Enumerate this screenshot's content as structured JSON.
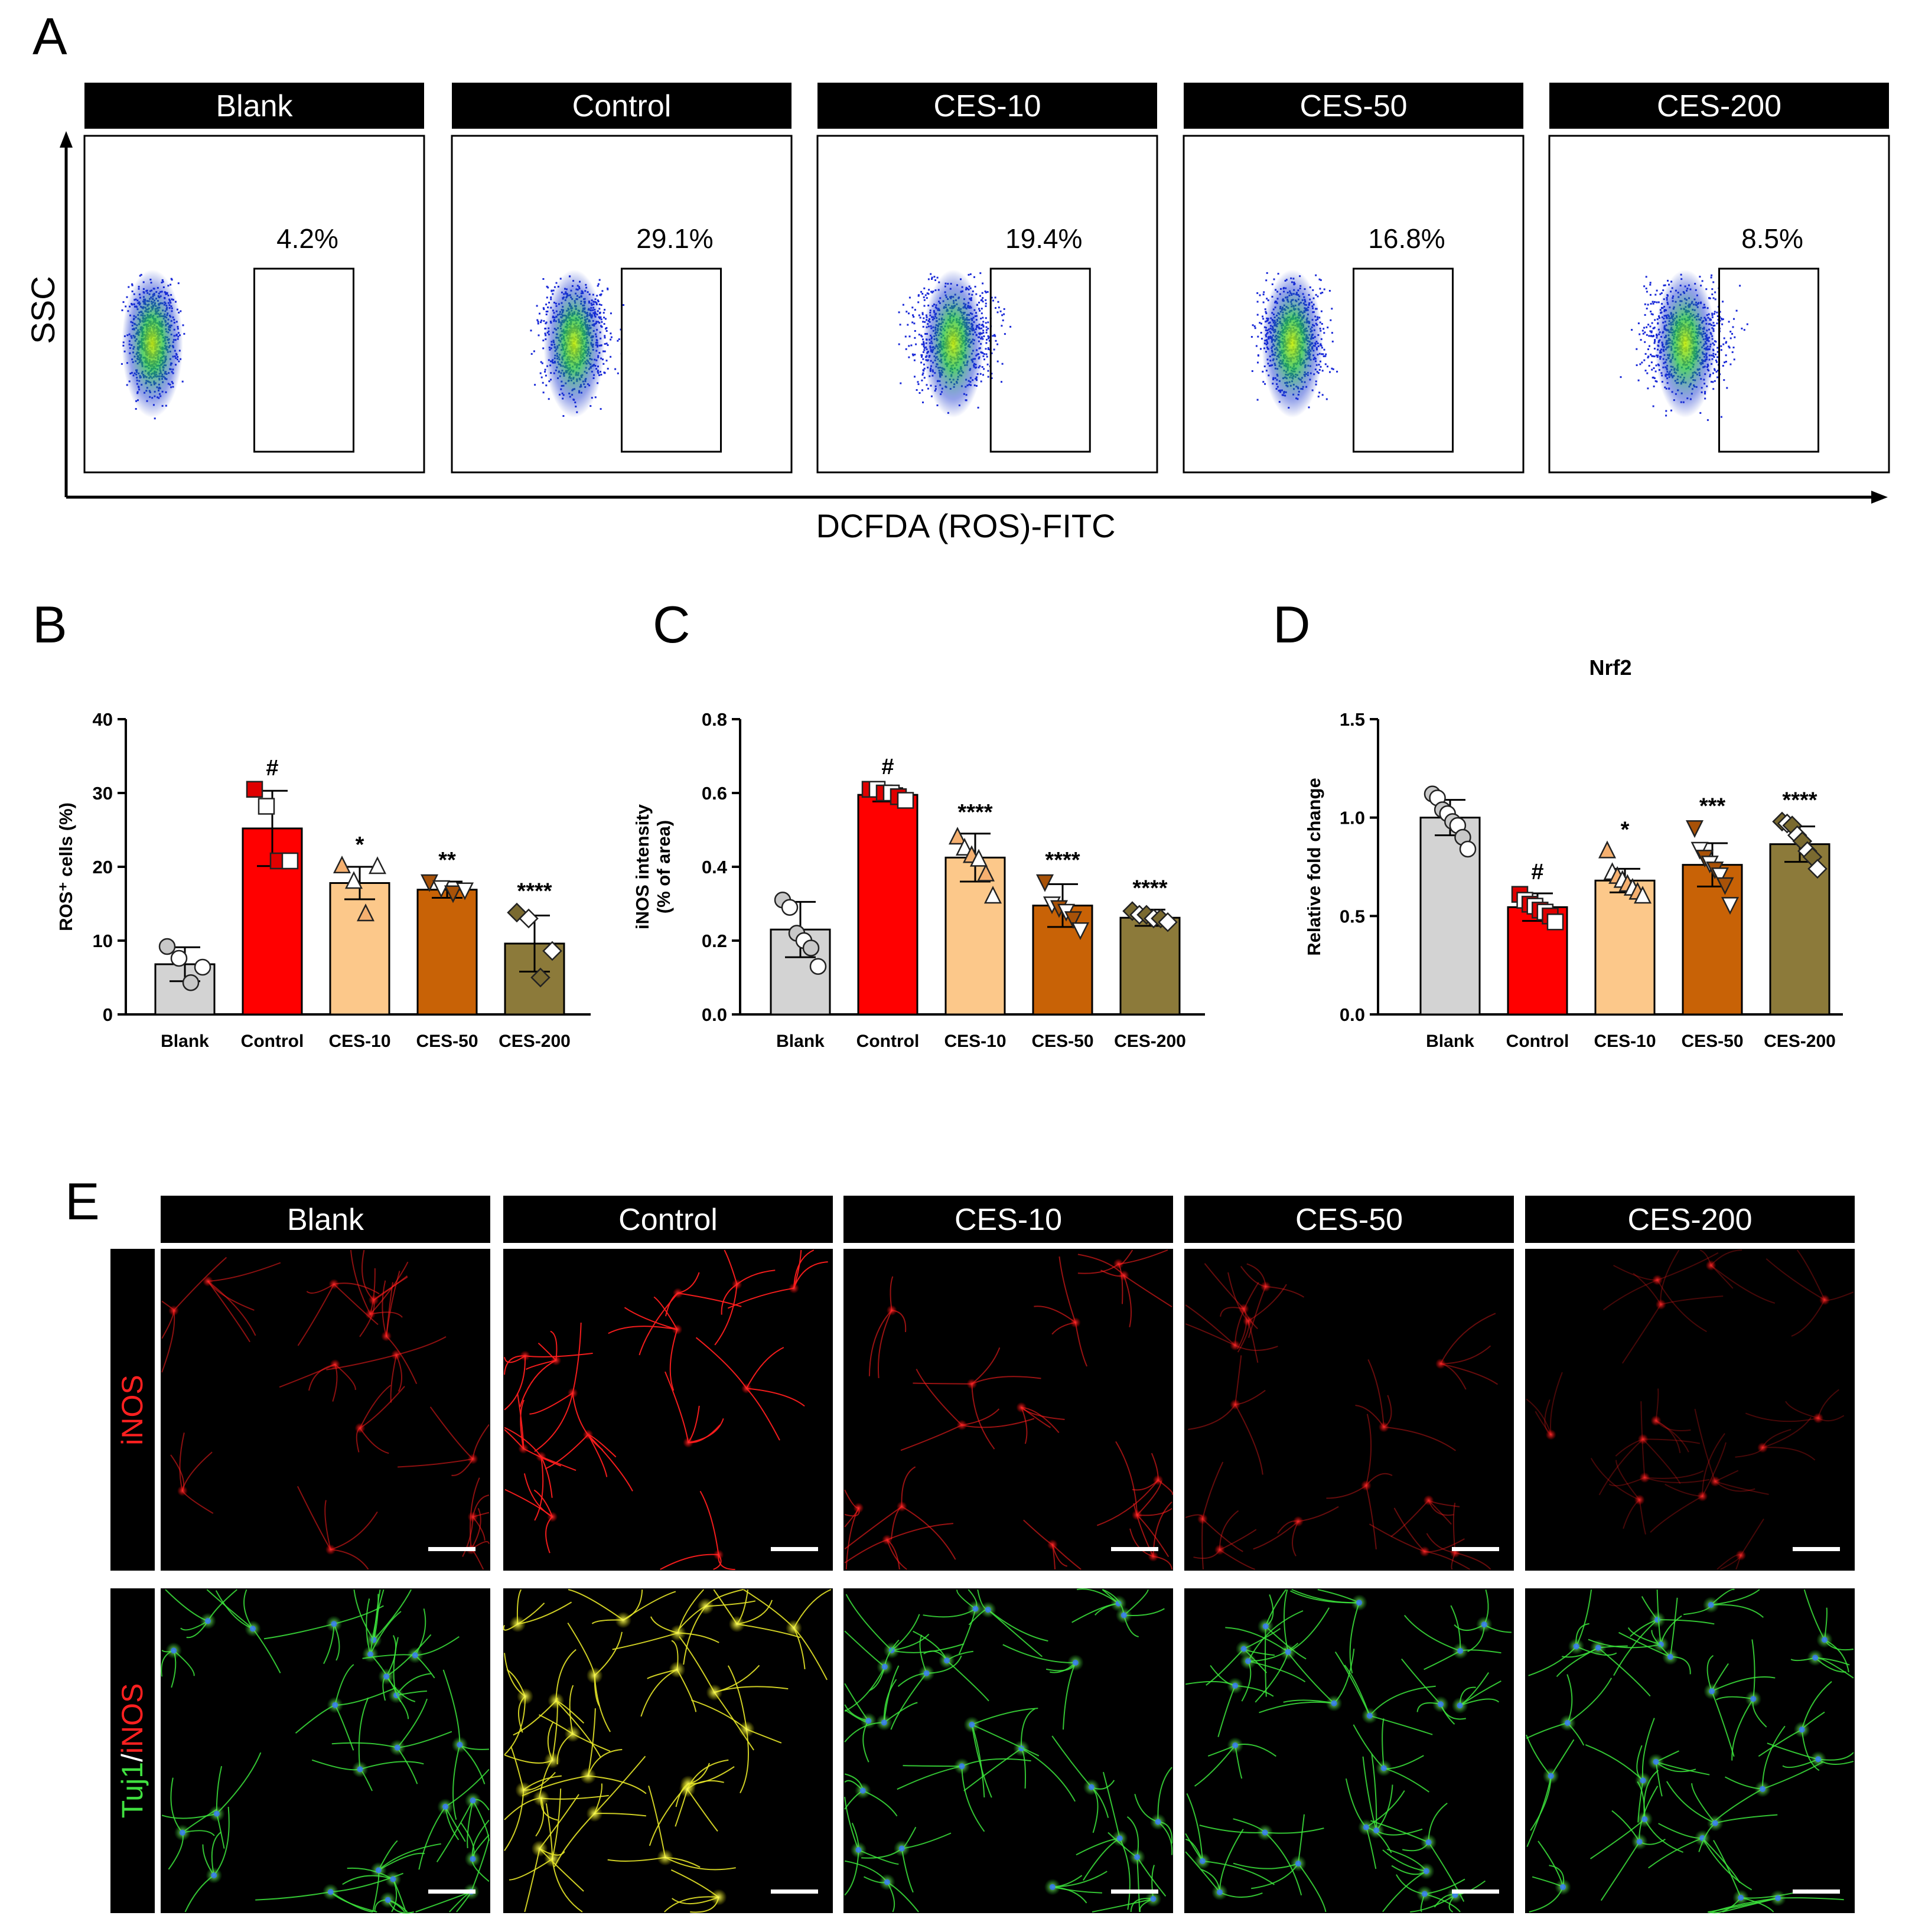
{
  "panel_letters": {
    "a": "A",
    "b": "B",
    "c": "C",
    "d": "D",
    "e": "E"
  },
  "groups": [
    "Blank",
    "Control",
    "CES-10",
    "CES-50",
    "CES-200"
  ],
  "colors": {
    "Blank": "#d3d3d3",
    "Control": "#ff0000",
    "CES-10": "#fcc88a",
    "CES-50": "#c86206",
    "CES-200": "#8c7a3a"
  },
  "marker_colors": {
    "Blank": "#c8c8c8",
    "Control": "#e00000",
    "CES-10": "#f5b070",
    "CES-50": "#a85208",
    "CES-200": "#7a6a30"
  },
  "flow": {
    "y_axis_label": "SSC",
    "x_axis_label": "DCFDA (ROS)-FITC",
    "percentages": [
      "4.2%",
      "29.1%",
      "19.4%",
      "16.8%",
      "8.5%"
    ]
  },
  "chart_data": [
    {
      "type": "bar",
      "panel": "B",
      "title": "",
      "xlabel": "",
      "ylabel": "ROS⁺ cells (%)",
      "categories": [
        "Blank",
        "Control",
        "CES-10",
        "CES-50",
        "CES-200"
      ],
      "values": [
        6.8,
        25.2,
        17.8,
        16.9,
        9.6
      ],
      "sd": [
        2.3,
        5.1,
        2.2,
        1.1,
        3.8
      ],
      "points": [
        [
          9.2,
          7.6,
          4.3,
          6.4
        ],
        [
          30.5,
          28.2,
          20.8,
          20.8
        ],
        [
          20.1,
          18.0,
          13.6,
          20.0
        ],
        [
          18.0,
          17.2,
          16.5,
          16.9
        ],
        [
          13.8,
          13.0,
          5.0,
          8.6
        ]
      ],
      "markers": [
        "circle",
        "square",
        "triangle",
        "triangle-down",
        "diamond"
      ],
      "significance": [
        "",
        "#",
        "*",
        "**",
        "****"
      ],
      "ylim": [
        0,
        40
      ],
      "yticks": [
        0,
        10,
        20,
        30,
        40
      ]
    },
    {
      "type": "bar",
      "panel": "C",
      "title": "",
      "xlabel": "",
      "ylabel": "iNOS intensity (% of area)",
      "ylabel_lines": [
        "iNOS intensity",
        "(% of area)"
      ],
      "categories": [
        "Blank",
        "Control",
        "CES-10",
        "CES-50",
        "CES-200"
      ],
      "values": [
        0.23,
        0.595,
        0.425,
        0.295,
        0.262
      ],
      "sd": [
        0.075,
        0.018,
        0.065,
        0.058,
        0.022
      ],
      "points": [
        [
          0.31,
          0.29,
          0.22,
          0.2,
          0.18,
          0.13
        ],
        [
          0.61,
          0.61,
          0.6,
          0.6,
          0.59,
          0.58
        ],
        [
          0.48,
          0.45,
          0.43,
          0.42,
          0.38,
          0.32
        ],
        [
          0.36,
          0.3,
          0.29,
          0.28,
          0.26,
          0.23
        ],
        [
          0.28,
          0.27,
          0.27,
          0.26,
          0.26,
          0.25
        ]
      ],
      "markers": [
        "circle",
        "square",
        "triangle",
        "triangle-down",
        "diamond"
      ],
      "significance": [
        "",
        "#",
        "****",
        "****",
        "****"
      ],
      "ylim": [
        0,
        0.8
      ],
      "yticks": [
        "0.0",
        "0.2",
        "0.4",
        "0.6",
        "0.8"
      ]
    },
    {
      "type": "bar",
      "panel": "D",
      "title": "Nrf2",
      "xlabel": "",
      "ylabel": "Relative fold change",
      "categories": [
        "Blank",
        "Control",
        "CES-10",
        "CES-50",
        "CES-200"
      ],
      "values": [
        1.0,
        0.545,
        0.68,
        0.76,
        0.865
      ],
      "sd": [
        0.09,
        0.07,
        0.06,
        0.11,
        0.09
      ],
      "points": [
        [
          1.12,
          1.1,
          1.04,
          1.02,
          0.98,
          0.96,
          0.9,
          0.84
        ],
        [
          0.61,
          0.58,
          0.56,
          0.55,
          0.53,
          0.52,
          0.5,
          0.47
        ],
        [
          0.83,
          0.72,
          0.7,
          0.68,
          0.66,
          0.64,
          0.62,
          0.6
        ],
        [
          0.95,
          0.84,
          0.8,
          0.77,
          0.74,
          0.71,
          0.66,
          0.56
        ],
        [
          0.98,
          0.97,
          0.96,
          0.91,
          0.88,
          0.83,
          0.8,
          0.74
        ]
      ],
      "markers": [
        "circle",
        "square",
        "triangle",
        "triangle-down",
        "diamond"
      ],
      "significance": [
        "",
        "#",
        "*",
        "***",
        "****"
      ],
      "ylim": [
        0,
        1.5
      ],
      "yticks": [
        "0.0",
        "0.5",
        "1.0",
        "1.5"
      ]
    }
  ],
  "micro": {
    "row1_label": "iNOS",
    "row2_label_a": "Tuj1",
    "row2_label_sep": "/",
    "row2_label_b": "iNOS"
  }
}
